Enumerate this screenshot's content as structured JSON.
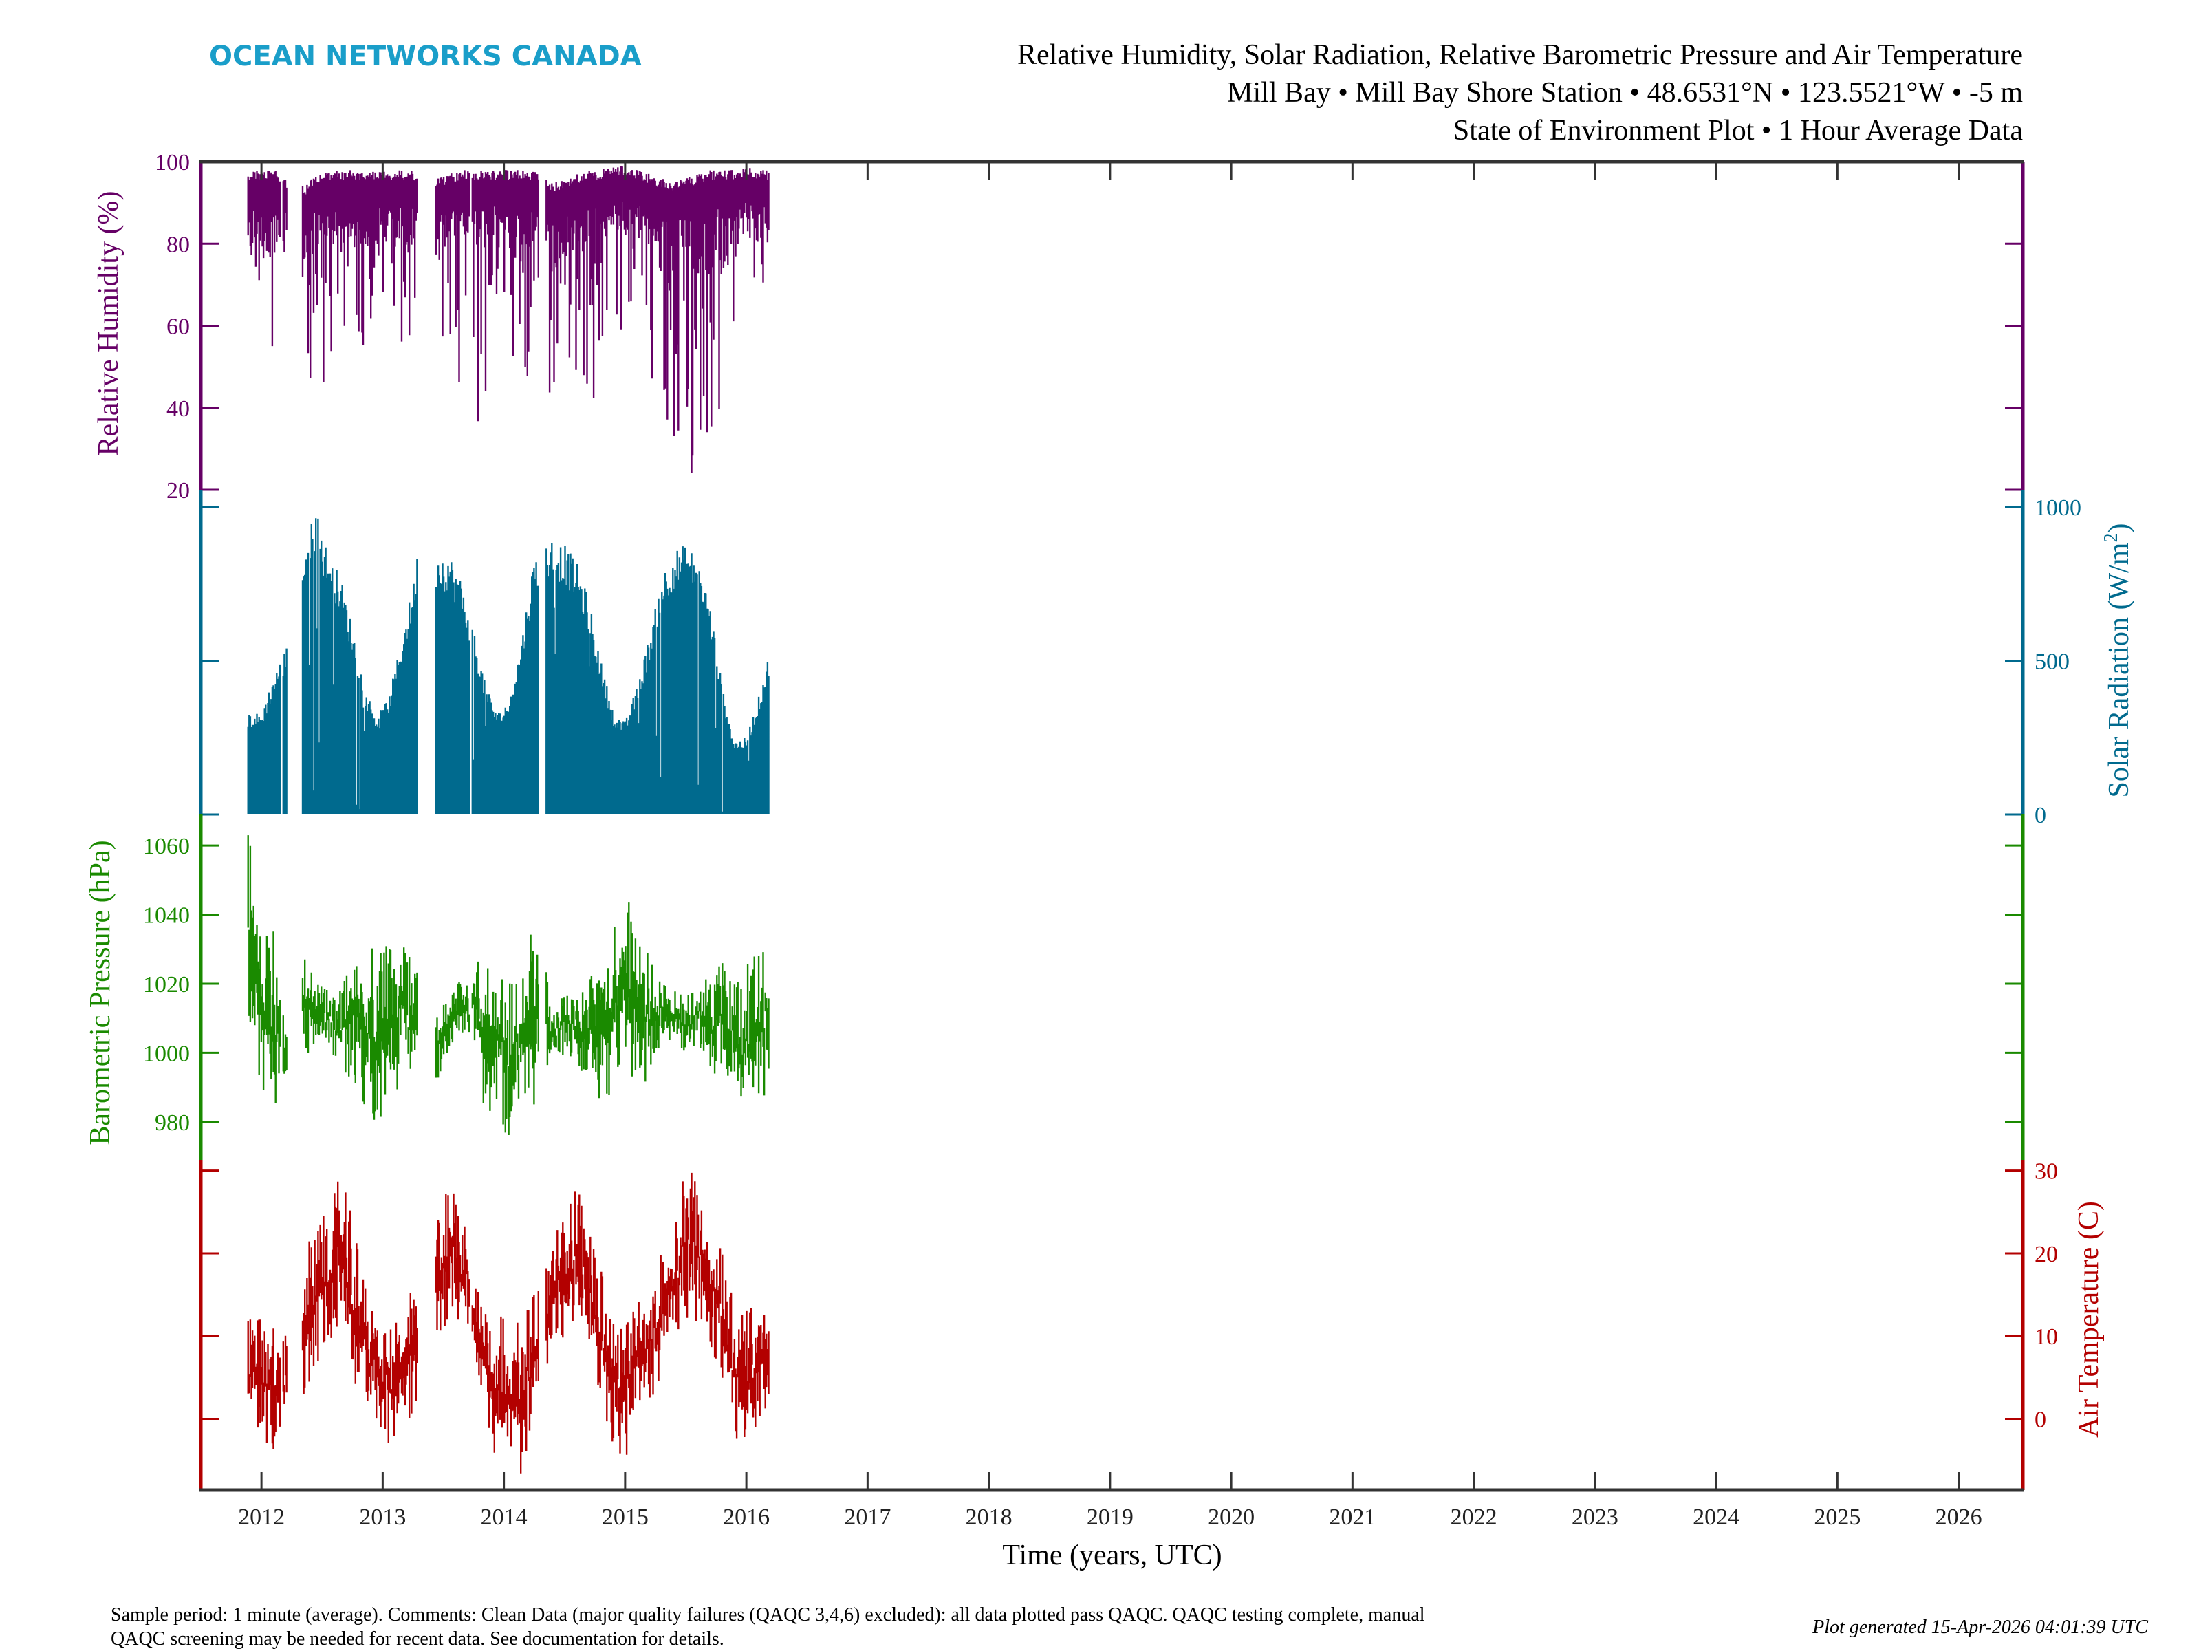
{
  "header": {
    "logo_text": "OCEAN NETWORKS CANADA",
    "title_line1": "Relative Humidity, Solar Radiation, Relative Barometric Pressure and Air Temperature",
    "title_line2": "Mill Bay • Mill Bay Shore Station • 48.6531°N • 123.5521°W • -5 m",
    "title_line3": "State of Environment Plot • 1 Hour Average Data"
  },
  "footer": {
    "comment_line1": "Sample period: 1 minute (average). Comments: Clean Data (major quality failures (QAQC 3,4,6) excluded): all data plotted pass QAQC. QAQC testing complete, manual",
    "comment_line2": "QAQC screening may be needed for recent data. See documentation for details.",
    "generated": "Plot generated 15-Apr-2026 04:01:39 UTC"
  },
  "colors": {
    "logo": "#1a9ec9",
    "humidity": "#660066",
    "solar": "#006a8e",
    "pressure": "#1a8a00",
    "temperature": "#b30000",
    "frame": "#333333"
  },
  "chart_data": {
    "type": "line",
    "xlabel": "Time (years, UTC)",
    "xlim": [
      2011.5,
      2026.53
    ],
    "x_ticks": [
      "2012",
      "2013",
      "2014",
      "2015",
      "2016",
      "2017",
      "2018",
      "2019",
      "2020",
      "2021",
      "2022",
      "2023",
      "2024",
      "2025",
      "2026"
    ],
    "data_segments": [
      [
        2011.89,
        2012.16
      ],
      [
        2012.18,
        2012.21
      ],
      [
        2012.34,
        2013.29
      ],
      [
        2013.44,
        2013.72
      ],
      [
        2013.74,
        2014.29
      ],
      [
        2014.35,
        2016.19
      ]
    ],
    "envelope_format": "[year, min, max]",
    "series": [
      {
        "key": "humidity",
        "name": "Relative Humidity",
        "ylabel": "Relative Humidity (%)",
        "axis_side": "left",
        "ylim": [
          20,
          100
        ],
        "y_ticks": [
          "20",
          "40",
          "60",
          "80",
          "100"
        ],
        "envelope": [
          [
            2011.9,
            68,
            98
          ],
          [
            2012.0,
            60,
            98
          ],
          [
            2012.1,
            48,
            98
          ],
          [
            2012.2,
            60,
            96
          ],
          [
            2012.35,
            33,
            94
          ],
          [
            2012.45,
            45,
            97
          ],
          [
            2012.55,
            30,
            98
          ],
          [
            2012.65,
            33,
            98
          ],
          [
            2012.75,
            50,
            98
          ],
          [
            2012.85,
            55,
            98
          ],
          [
            2012.95,
            60,
            98
          ],
          [
            2013.05,
            62,
            98
          ],
          [
            2013.15,
            55,
            98
          ],
          [
            2013.25,
            45,
            98
          ],
          [
            2013.45,
            50,
            96
          ],
          [
            2013.55,
            27,
            97
          ],
          [
            2013.65,
            45,
            98
          ],
          [
            2013.8,
            30,
            98
          ],
          [
            2013.9,
            48,
            98
          ],
          [
            2014.0,
            55,
            98
          ],
          [
            2014.1,
            38,
            98
          ],
          [
            2014.2,
            35,
            98
          ],
          [
            2014.29,
            45,
            98
          ],
          [
            2014.4,
            42,
            95
          ],
          [
            2014.5,
            45,
            96
          ],
          [
            2014.6,
            40,
            97
          ],
          [
            2014.7,
            28,
            98
          ],
          [
            2014.8,
            45,
            98
          ],
          [
            2014.9,
            52,
            99
          ],
          [
            2015.0,
            50,
            99
          ],
          [
            2015.1,
            52,
            98
          ],
          [
            2015.2,
            42,
            97
          ],
          [
            2015.3,
            40,
            96
          ],
          [
            2015.4,
            22,
            95
          ],
          [
            2015.5,
            22,
            96
          ],
          [
            2015.6,
            25,
            97
          ],
          [
            2015.7,
            30,
            98
          ],
          [
            2015.8,
            38,
            98
          ],
          [
            2015.9,
            45,
            98
          ],
          [
            2016.0,
            62,
            99
          ],
          [
            2016.1,
            68,
            98
          ],
          [
            2016.19,
            62,
            98
          ]
        ]
      },
      {
        "key": "solar",
        "name": "Solar Radiation",
        "ylabel_main": "Solar Radiation (W/m",
        "ylabel_sup": "2",
        "ylabel_end": ")",
        "axis_side": "right",
        "ylim": [
          0,
          1056
        ],
        "y_ticks": [
          "0",
          "500",
          "1000"
        ],
        "envelope": [
          [
            2011.9,
            0,
            330
          ],
          [
            2012.0,
            0,
            330
          ],
          [
            2012.1,
            0,
            450
          ],
          [
            2012.2,
            0,
            540
          ],
          [
            2012.35,
            0,
            870
          ],
          [
            2012.45,
            0,
            1000
          ],
          [
            2012.55,
            0,
            850
          ],
          [
            2012.65,
            0,
            780
          ],
          [
            2012.75,
            0,
            610
          ],
          [
            2012.85,
            0,
            420
          ],
          [
            2012.95,
            0,
            320
          ],
          [
            2013.05,
            0,
            380
          ],
          [
            2013.15,
            0,
            560
          ],
          [
            2013.25,
            0,
            750
          ],
          [
            2013.29,
            0,
            860
          ],
          [
            2013.45,
            0,
            860
          ],
          [
            2013.55,
            0,
            850
          ],
          [
            2013.65,
            0,
            760
          ],
          [
            2013.72,
            0,
            650
          ],
          [
            2013.75,
            0,
            600
          ],
          [
            2013.85,
            0,
            420
          ],
          [
            2013.95,
            0,
            330
          ],
          [
            2014.05,
            0,
            380
          ],
          [
            2014.15,
            0,
            580
          ],
          [
            2014.25,
            0,
            840
          ],
          [
            2014.29,
            0,
            870
          ],
          [
            2014.4,
            0,
            900
          ],
          [
            2014.5,
            0,
            880
          ],
          [
            2014.6,
            0,
            820
          ],
          [
            2014.7,
            0,
            700
          ],
          [
            2014.8,
            0,
            500
          ],
          [
            2014.9,
            0,
            340
          ],
          [
            2015.0,
            0,
            300
          ],
          [
            2015.1,
            0,
            420
          ],
          [
            2015.2,
            0,
            580
          ],
          [
            2015.3,
            0,
            780
          ],
          [
            2015.4,
            0,
            860
          ],
          [
            2015.5,
            0,
            880
          ],
          [
            2015.6,
            0,
            840
          ],
          [
            2015.7,
            0,
            690
          ],
          [
            2015.8,
            0,
            420
          ],
          [
            2015.9,
            0,
            240
          ],
          [
            2016.0,
            0,
            250
          ],
          [
            2016.1,
            0,
            380
          ],
          [
            2016.19,
            0,
            530
          ]
        ]
      },
      {
        "key": "pressure",
        "name": "Barometric Pressure",
        "ylabel": "Barometric Pressure (hPa)",
        "axis_side": "left",
        "ylim": [
          969,
          1069
        ],
        "y_ticks": [
          "980",
          "1000",
          "1020",
          "1040",
          "1060"
        ],
        "envelope": [
          [
            2011.9,
            1005,
            1063
          ],
          [
            2012.0,
            990,
            1042
          ],
          [
            2012.1,
            985,
            1035
          ],
          [
            2012.2,
            988,
            1005
          ],
          [
            2012.35,
            1000,
            1034
          ],
          [
            2012.45,
            1000,
            1020
          ],
          [
            2012.55,
            1002,
            1018
          ],
          [
            2012.65,
            996,
            1018
          ],
          [
            2012.75,
            992,
            1026
          ],
          [
            2012.85,
            985,
            1028
          ],
          [
            2012.95,
            978,
            1037
          ],
          [
            2013.05,
            988,
            1030
          ],
          [
            2013.15,
            990,
            1032
          ],
          [
            2013.25,
            990,
            1026
          ],
          [
            2013.45,
            992,
            1014
          ],
          [
            2013.55,
            1002,
            1015
          ],
          [
            2013.65,
            1006,
            1022
          ],
          [
            2013.72,
            1005,
            1018
          ],
          [
            2013.75,
            1000,
            1030
          ],
          [
            2013.85,
            982,
            1025
          ],
          [
            2013.95,
            985,
            1022
          ],
          [
            2014.05,
            972,
            1020
          ],
          [
            2014.15,
            988,
            1020
          ],
          [
            2014.25,
            985,
            1040
          ],
          [
            2014.4,
            995,
            1015
          ],
          [
            2014.5,
            1000,
            1016
          ],
          [
            2014.6,
            998,
            1018
          ],
          [
            2014.7,
            990,
            1020
          ],
          [
            2014.8,
            983,
            1030
          ],
          [
            2014.9,
            990,
            1036
          ],
          [
            2015.0,
            998,
            1048
          ],
          [
            2015.1,
            982,
            1034
          ],
          [
            2015.2,
            995,
            1028
          ],
          [
            2015.3,
            1003,
            1020
          ],
          [
            2015.4,
            1004,
            1018
          ],
          [
            2015.5,
            1000,
            1016
          ],
          [
            2015.6,
            1003,
            1021
          ],
          [
            2015.7,
            995,
            1022
          ],
          [
            2015.8,
            990,
            1026
          ],
          [
            2015.9,
            986,
            1024
          ],
          [
            2016.0,
            978,
            1025
          ],
          [
            2016.1,
            985,
            1030
          ],
          [
            2016.19,
            990,
            1028
          ]
        ]
      },
      {
        "key": "temperature",
        "name": "Air Temperature",
        "ylabel": "Air Temperature (C)",
        "axis_side": "right",
        "ylim": [
          -8.6,
          31.3
        ],
        "y_ticks": [
          "0",
          "10",
          "20",
          "30"
        ],
        "envelope": [
          [
            2011.9,
            -1,
            12
          ],
          [
            2012.0,
            -2,
            12
          ],
          [
            2012.1,
            -4,
            12
          ],
          [
            2012.2,
            0,
            10
          ],
          [
            2012.35,
            3,
            21
          ],
          [
            2012.45,
            6,
            22
          ],
          [
            2012.55,
            9,
            26
          ],
          [
            2012.65,
            12,
            30
          ],
          [
            2012.75,
            5,
            24
          ],
          [
            2012.85,
            2,
            16
          ],
          [
            2012.95,
            0,
            12
          ],
          [
            2013.05,
            -3,
            11
          ],
          [
            2013.15,
            -2,
            12
          ],
          [
            2013.25,
            1,
            16
          ],
          [
            2013.45,
            10,
            25
          ],
          [
            2013.55,
            12,
            29
          ],
          [
            2013.65,
            12,
            24
          ],
          [
            2013.72,
            11,
            22
          ],
          [
            2013.75,
            5,
            17
          ],
          [
            2013.85,
            1,
            15
          ],
          [
            2013.95,
            -7,
            13
          ],
          [
            2014.05,
            -3,
            11
          ],
          [
            2014.15,
            -7,
            12
          ],
          [
            2014.25,
            2,
            15
          ],
          [
            2014.4,
            7,
            22
          ],
          [
            2014.5,
            10,
            24
          ],
          [
            2014.6,
            12,
            28
          ],
          [
            2014.7,
            10,
            24
          ],
          [
            2014.8,
            2,
            18
          ],
          [
            2014.9,
            -3,
            12
          ],
          [
            2015.0,
            -5,
            11
          ],
          [
            2015.1,
            0,
            14
          ],
          [
            2015.2,
            2,
            16
          ],
          [
            2015.3,
            5,
            20
          ],
          [
            2015.4,
            9,
            24
          ],
          [
            2015.5,
            11,
            31
          ],
          [
            2015.6,
            12,
            30
          ],
          [
            2015.7,
            8,
            24
          ],
          [
            2015.8,
            4,
            20
          ],
          [
            2015.9,
            -2,
            14
          ],
          [
            2016.0,
            -4,
            13
          ],
          [
            2016.1,
            0,
            14
          ],
          [
            2016.19,
            2,
            13
          ]
        ]
      }
    ]
  }
}
